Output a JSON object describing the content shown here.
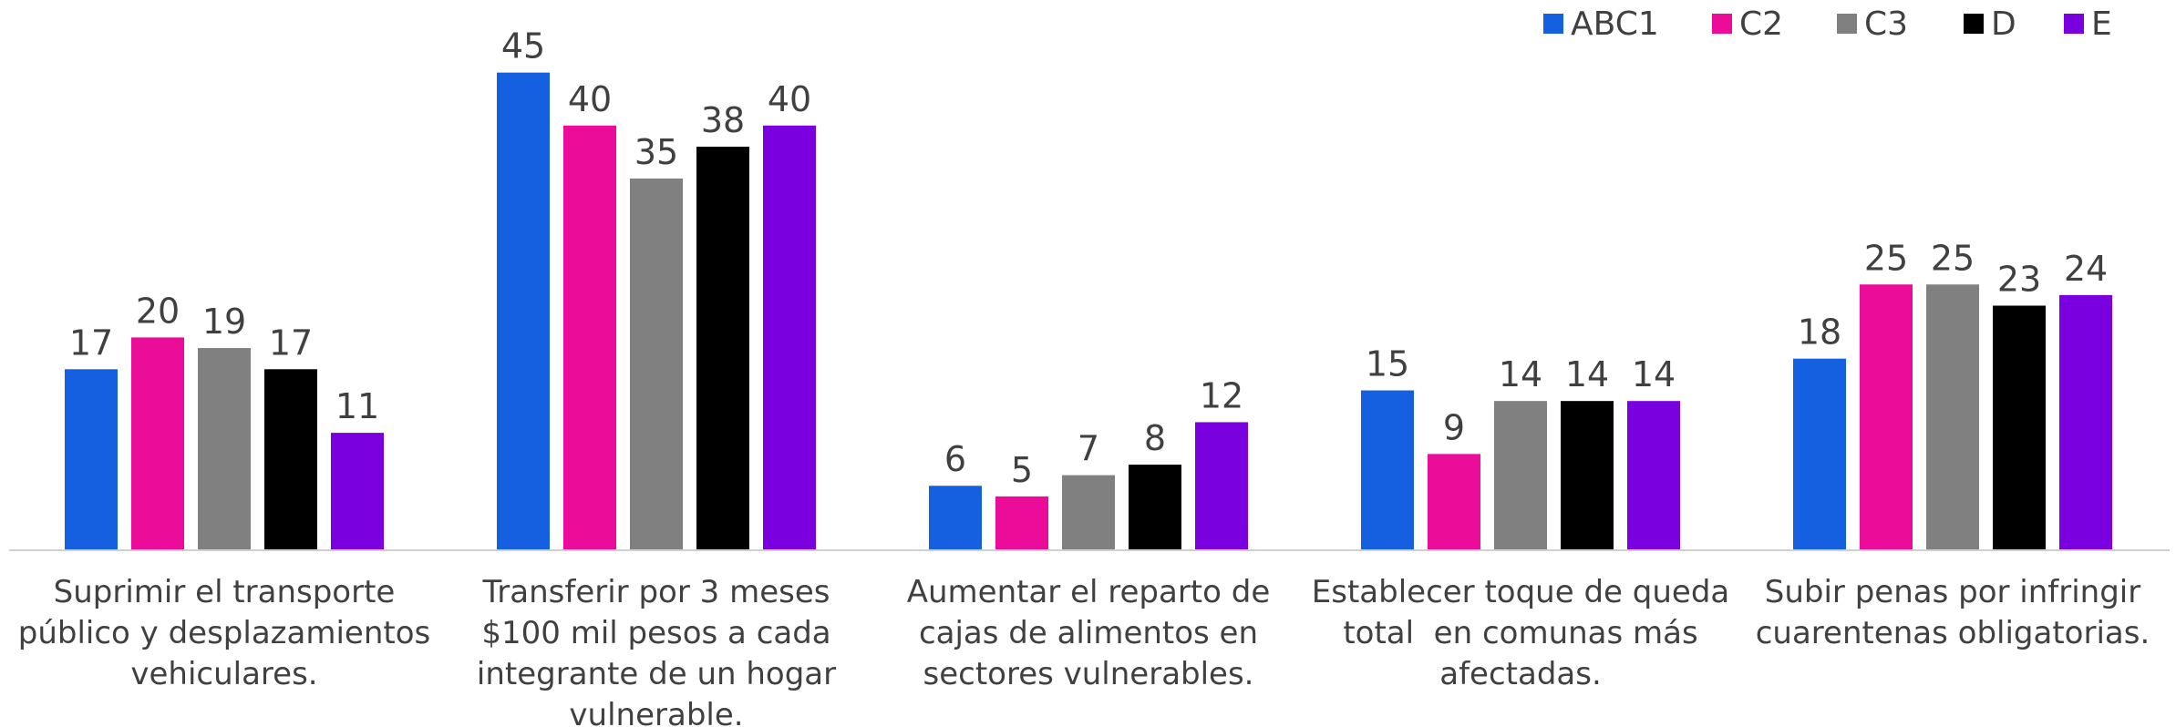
{
  "chart_data": {
    "type": "bar",
    "categories": [
      "Suprimir el transporte público y desplazamientos vehiculares.",
      "Transferir por 3 meses $100 mil pesos a cada integrante de un hogar vulnerable.",
      "Aumentar el reparto de cajas de alimentos en sectores vulnerables.",
      "Establecer toque de queda total  en comunas más afectadas.",
      "Subir penas por infringir cuarentenas obligatorias."
    ],
    "series": [
      {
        "name": "ABC1",
        "color": "#1560e0",
        "values": [
          17,
          45,
          6,
          15,
          18
        ]
      },
      {
        "name": "C2",
        "color": "#ec0c9a",
        "values": [
          20,
          40,
          5,
          9,
          25
        ]
      },
      {
        "name": "C3",
        "color": "#808080",
        "values": [
          19,
          35,
          7,
          14,
          25
        ]
      },
      {
        "name": "D",
        "color": "#000000",
        "values": [
          17,
          38,
          8,
          14,
          23
        ]
      },
      {
        "name": "E",
        "color": "#7b00e0",
        "values": [
          11,
          40,
          12,
          14,
          24
        ]
      }
    ],
    "legend": "top-right"
  }
}
